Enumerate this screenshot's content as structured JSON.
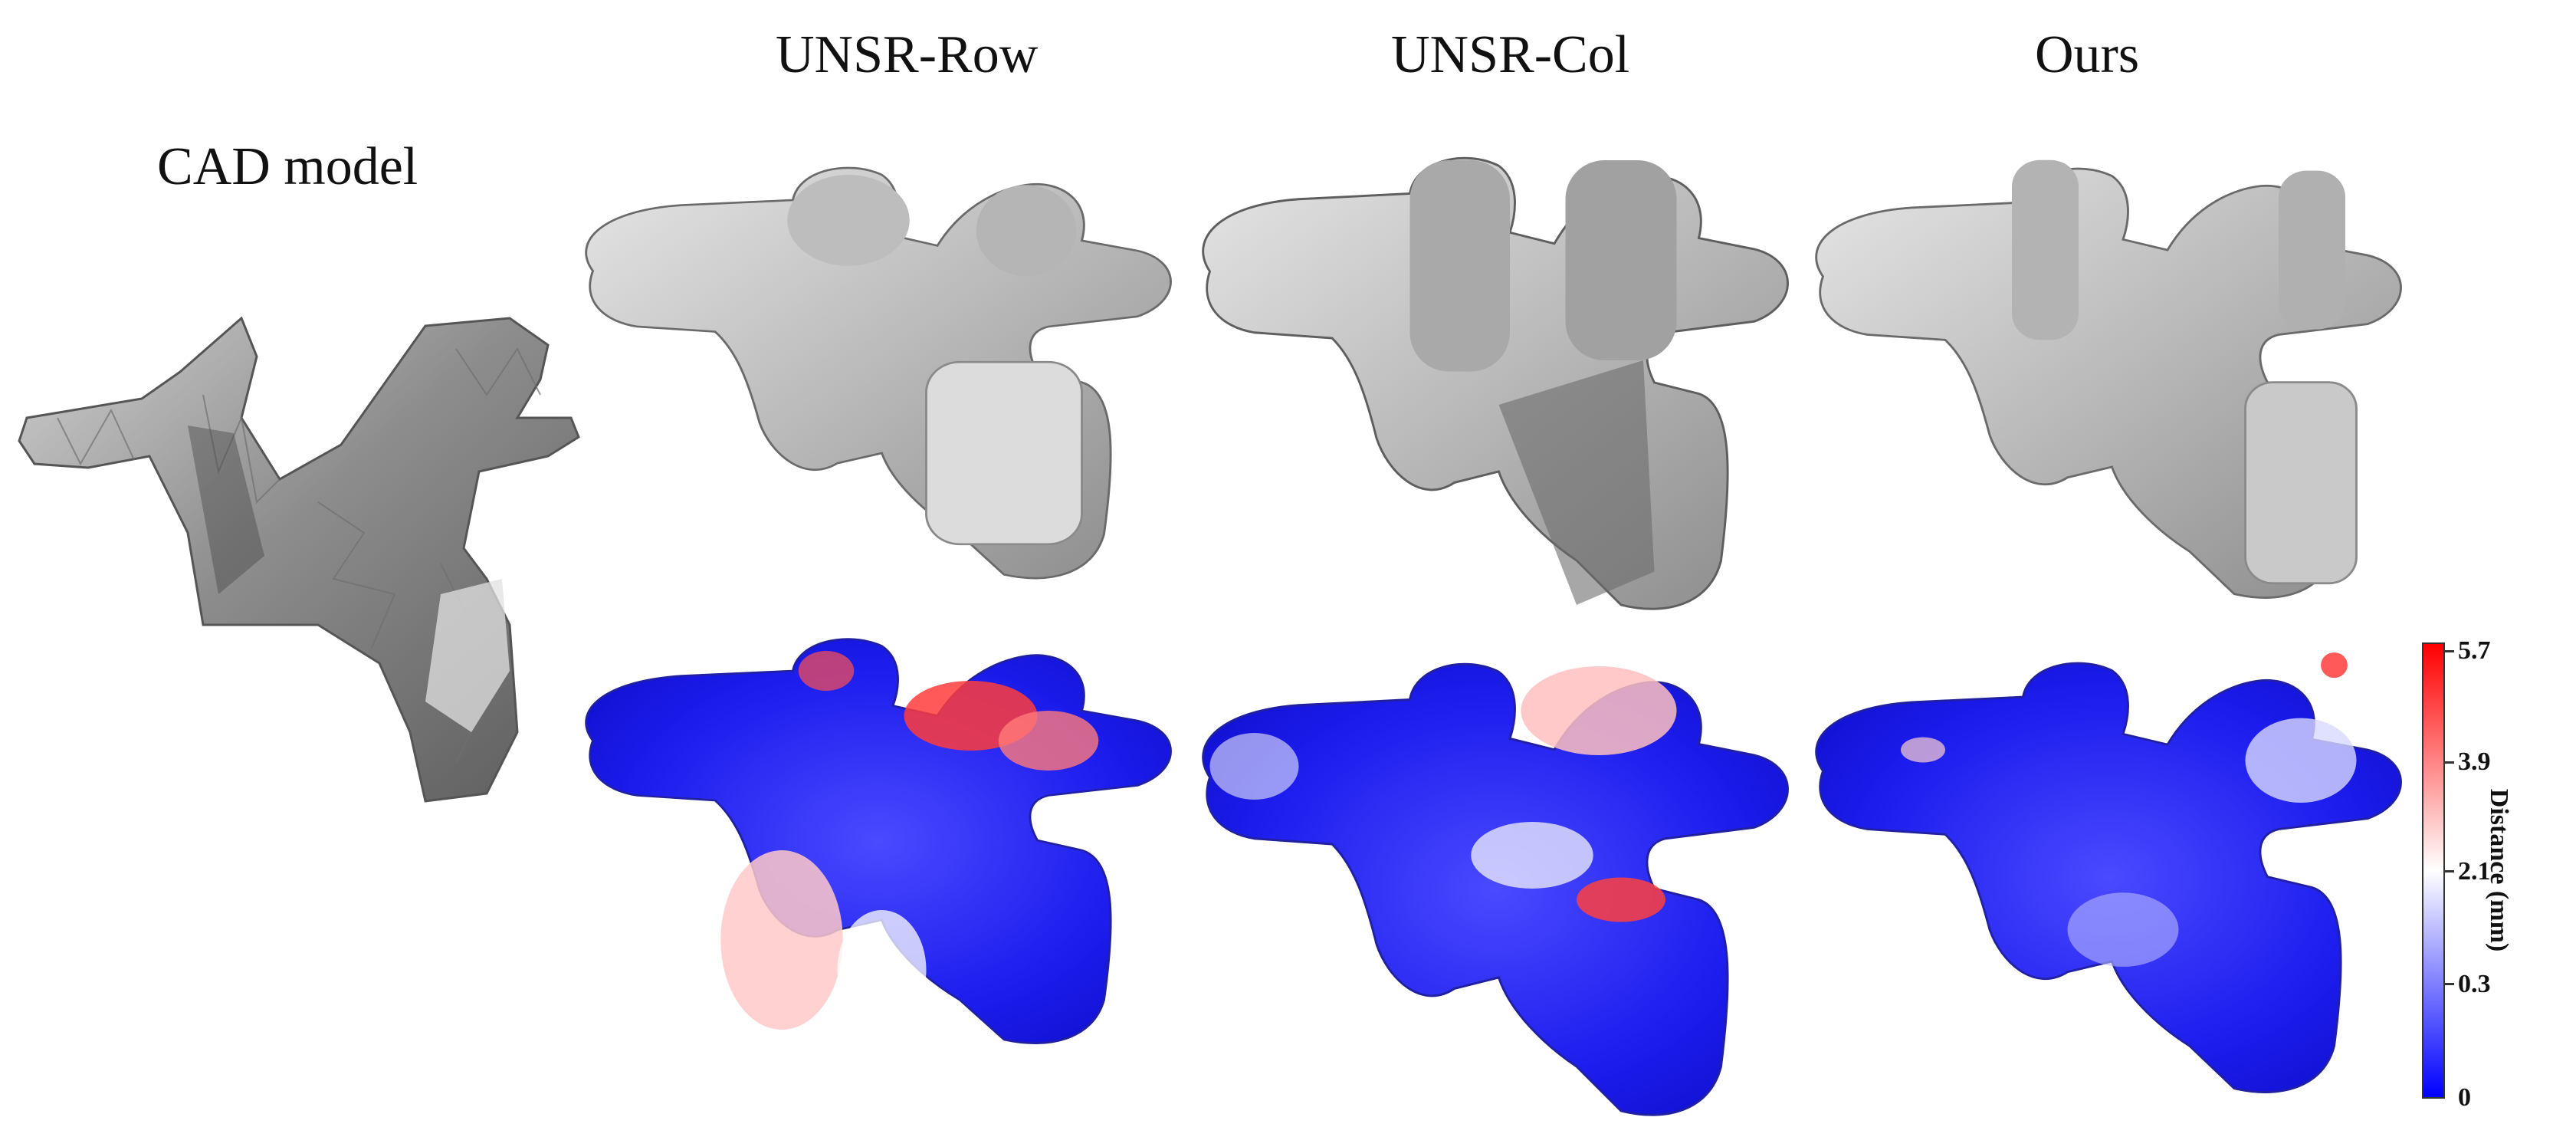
{
  "figure": {
    "cad_label": "CAD model",
    "columns": [
      {
        "id": "row",
        "label": "UNSR-Row"
      },
      {
        "id": "col",
        "label": "UNSR-Col"
      },
      {
        "id": "ours",
        "label": "Ours"
      }
    ]
  },
  "colorbar": {
    "title": "Distance (mm)",
    "ticks": [
      "5.7",
      "3.9",
      "2.1",
      "0.3",
      "0"
    ],
    "colors": {
      "low": "#0000ff",
      "mid": "#ffffff",
      "high": "#ff0000"
    }
  }
}
